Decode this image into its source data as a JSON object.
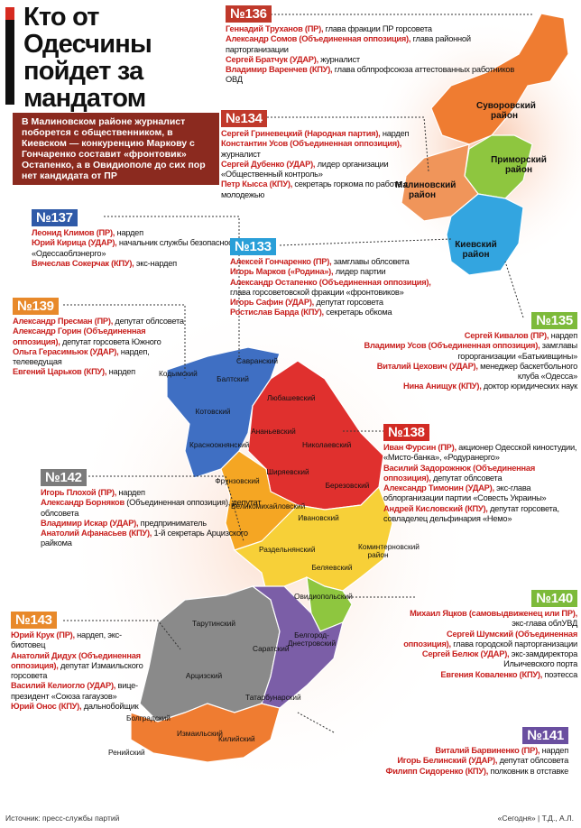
{
  "header": {
    "title": "Кто от Одесчины пойдет за мандатом",
    "intro": "В Малиновском районе журналист поборется с общественником, в Киевском — конкуренцию Маркову с Гончаренко составит «фронтовик» Остапенко, а в Овидиополе до сих пор нет кандидата от ПР"
  },
  "districts": [
    {
      "number": "№136",
      "candidates": [
        {
          "name": "Геннадий Труханов (ПР),",
          "role": "глава фракции ПР горсовета"
        },
        {
          "name": "Александр Сомов (Объединенная оппозиция),",
          "role": "глава районной парторганизации"
        },
        {
          "name": "Сергей Братчук (УДАР),",
          "role": "журналист"
        },
        {
          "name": "Владимир Варенчев (КПУ),",
          "role": "глава облпрофсоюза аттестованных работников ОВД"
        }
      ]
    },
    {
      "number": "№134",
      "candidates": [
        {
          "name": "Сергей Гриневецкий (Народная партия),",
          "role": "нардеп"
        },
        {
          "name": "Константин Усов (Объединенная оппозиция),",
          "role": "журналист"
        },
        {
          "name": "Сергей Дубенко (УДАР),",
          "role": "лидер организации «Общественный контроль»"
        },
        {
          "name": "Петр Кысса (КПУ),",
          "role": "секретарь горкома по работе с молодежью"
        }
      ]
    },
    {
      "number": "№137",
      "candidates": [
        {
          "name": "Леонид Климов (ПР),",
          "role": "нардеп"
        },
        {
          "name": "Юрий Кирица (УДАР),",
          "role": "начальник службы безопасности «Одессаоблэнерго»"
        },
        {
          "name": "Вячеслав Сокерчак (КПУ),",
          "role": "экс-нардеп"
        }
      ]
    },
    {
      "number": "№133",
      "candidates": [
        {
          "name": "Алексей Гончаренко (ПР),",
          "role": "замглавы облсовета"
        },
        {
          "name": "Игорь Марков («Родина»),",
          "role": "лидер партии"
        },
        {
          "name": "Александр Остапенко (Объединенная оппозиция),",
          "role": "глава горсоветовской фракции «фронтовиков»"
        },
        {
          "name": "Игорь Сафин (УДАР),",
          "role": "депутат горсовета"
        },
        {
          "name": "Ростислав Барда (КПУ),",
          "role": "секретарь обкома"
        }
      ]
    },
    {
      "number": "№139",
      "candidates": [
        {
          "name": "Александр Пресман (ПР),",
          "role": "депутат облсовета"
        },
        {
          "name": "Александр Горин (Объединенная оппозиция),",
          "role": "депутат горсовета Южного"
        },
        {
          "name": "Ольга Герасимьюк (УДАР),",
          "role": "нардеп, телеведущая"
        },
        {
          "name": "Евгений Царьков (КПУ),",
          "role": "нардеп"
        }
      ]
    },
    {
      "number": "№135",
      "candidates": [
        {
          "name": "Сергей Кивалов (ПР),",
          "role": "нардеп"
        },
        {
          "name": "Владимир Усов (Объединенная оппозиция),",
          "role": "замглавы горорганизации «Батькивщины»"
        },
        {
          "name": "Виталий Цехович (УДАР),",
          "role": "менеджер баскетбольного клуба «Одесса»"
        },
        {
          "name": "Нина Анищук (КПУ),",
          "role": "доктор юридических наук"
        }
      ]
    },
    {
      "number": "№138",
      "candidates": [
        {
          "name": "Иван Фурсин (ПР),",
          "role": "акционер Одесской киностудии, «Мисто-банка», «Родуранерго»"
        },
        {
          "name": "Василий Задорожнюк (Объединенная оппозиция),",
          "role": "депутат облсовета"
        },
        {
          "name": "Александр Тимонин (УДАР),",
          "role": "экс-глава облорганизации партии «Совесть Украины»"
        },
        {
          "name": "Андрей Кисловский (КПУ),",
          "role": "депутат горсовета, совладелец дельфинария «Немо»"
        }
      ]
    },
    {
      "number": "№142",
      "candidates": [
        {
          "name": "Игорь Плохой (ПР),",
          "role": "нардеп"
        },
        {
          "name": "Александр Борняков",
          "role": "(Объединенная оппозиция), депутат облсовета"
        },
        {
          "name": "Владимир Искар (УДАР),",
          "role": "предприниматель"
        },
        {
          "name": "Анатолий Афанасьев (КПУ),",
          "role": "1-й секретарь Арцизского райкома"
        }
      ]
    },
    {
      "number": "№140",
      "candidates": [
        {
          "name": "Михаил Яцков (самовыдвиженец или ПР),",
          "role": "экс-глава облУВД"
        },
        {
          "name": "Сергей Шумский (Объединенная оппозиция),",
          "role": "глава городской парторганизации"
        },
        {
          "name": "Сергей Белюк (УДАР),",
          "role": "экс-замдиректора Ильичевского порта"
        },
        {
          "name": "Евгения Коваленко (КПУ),",
          "role": "поэтесса"
        }
      ]
    },
    {
      "number": "№143",
      "candidates": [
        {
          "name": "Юрий Крук (ПР),",
          "role": "нардеп, экс-биотовец"
        },
        {
          "name": "Анатолий Дидух (Объединенная оппозиция),",
          "role": "депутат Измаильского горсовета"
        },
        {
          "name": "Василий Келиогло (УДАР),",
          "role": "вице-президент «Союза гагаузов»"
        },
        {
          "name": "Юрий Онос (КПУ),",
          "role": "дальнобойщик"
        }
      ]
    },
    {
      "number": "№141",
      "candidates": [
        {
          "name": "Виталий Барвиненко (ПР),",
          "role": "нардеп"
        },
        {
          "name": "Игорь Белинский (УДАР),",
          "role": "депутат облсовета"
        },
        {
          "name": "Филипп Сидоренко (КПУ),",
          "role": "полковник в отставке"
        }
      ]
    }
  ],
  "map_labels": [
    "Суворовский район",
    "Приморский район",
    "Малиновский район",
    "Киевский район",
    "Кодымский",
    "Балтский",
    "Савранский",
    "Котовский",
    "Любашевский",
    "Красноокнянский",
    "Ананьевский",
    "Николаевский",
    "Ширяевский",
    "Фрунзовский",
    "Березовский",
    "Великомихайловский",
    "Ивановский",
    "Раздельнянский",
    "Коминтерновский район",
    "Беляевский",
    "Овидиопольский",
    "Тарутинский",
    "Саратский",
    "Белгород-Днестровский",
    "Арцизский",
    "Татарбунарский",
    "Болградский",
    "Измаильский",
    "Килийский",
    "Ренийский"
  ],
  "footer": {
    "source": "Источник: пресс-службы партий",
    "credit": "«Сегодня» | Т.Д., А.Л."
  }
}
